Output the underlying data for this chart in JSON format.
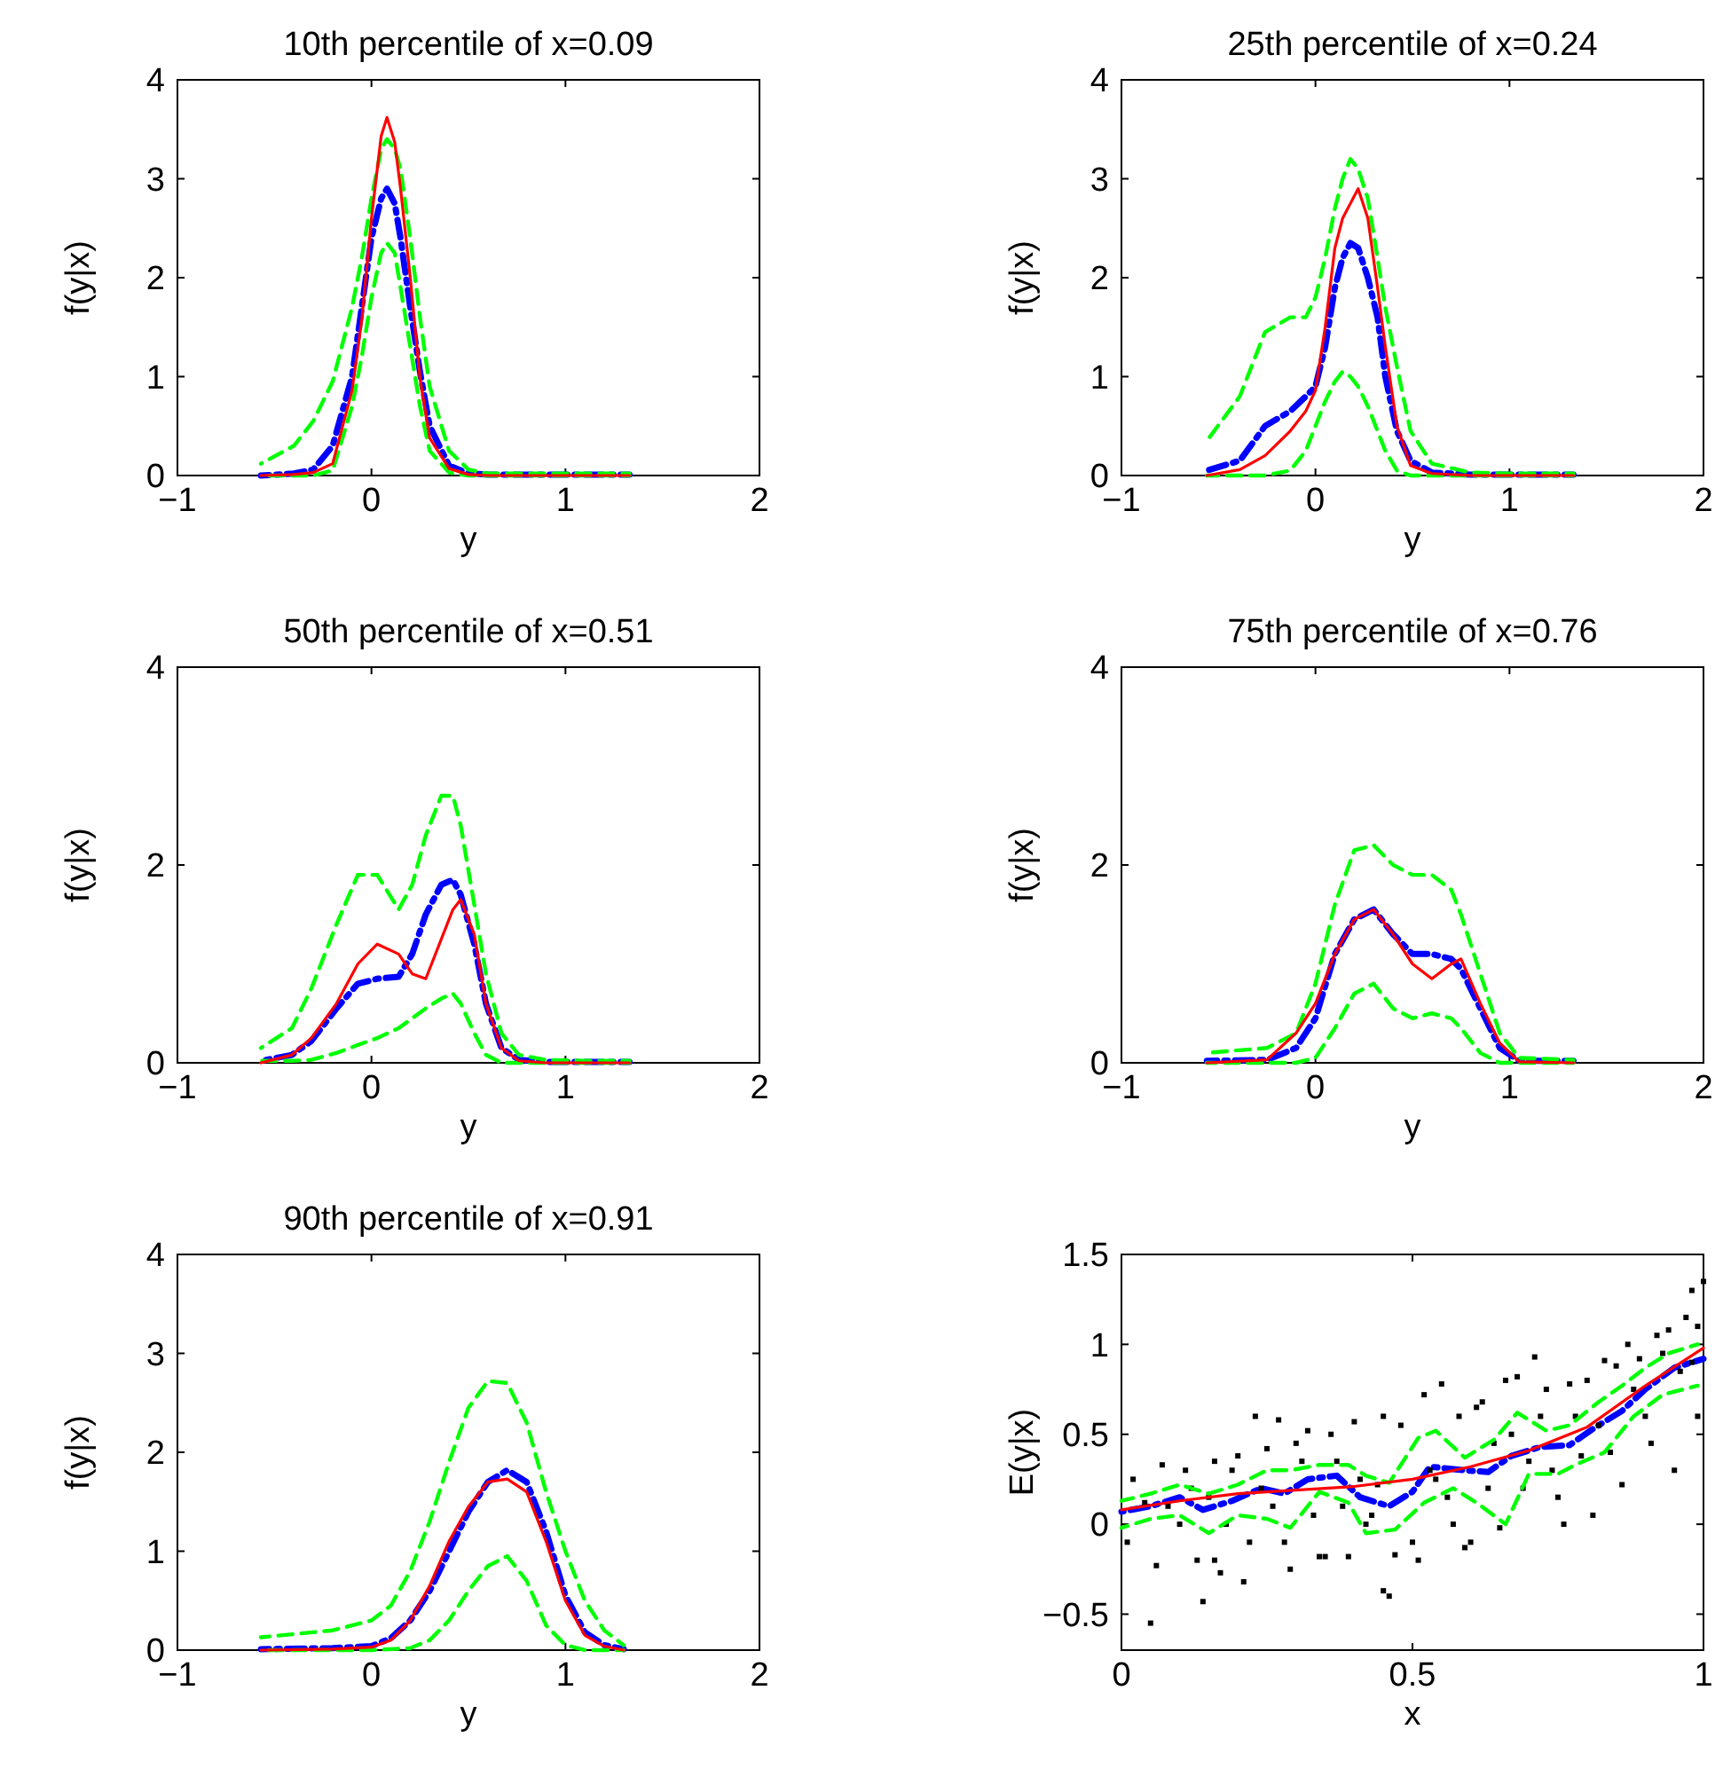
{
  "chart_data": [
    {
      "type": "line",
      "title": "10th percentile of x=0.09",
      "xlabel": "y",
      "ylabel": "f(y|x)",
      "xlim": [
        -1,
        2
      ],
      "xticks": [
        -1,
        0,
        1,
        2
      ],
      "ylim": [
        0,
        4
      ],
      "yticks": [
        0,
        1,
        2,
        3,
        4
      ],
      "x": [
        -0.57,
        -0.4,
        -0.3,
        -0.2,
        -0.1,
        -0.05,
        0,
        0.05,
        0.08,
        0.12,
        0.15,
        0.2,
        0.25,
        0.3,
        0.4,
        0.5,
        0.6,
        0.8,
        1.0,
        1.33
      ],
      "series": [
        {
          "color": "#00ff00",
          "line_style": "dashed",
          "values": [
            0.12,
            0.3,
            0.55,
            0.95,
            1.7,
            2.2,
            2.8,
            3.3,
            3.4,
            3.3,
            3.1,
            2.4,
            1.6,
            0.9,
            0.25,
            0.06,
            0.02,
            0.02,
            0.02,
            0.02
          ]
        },
        {
          "color": "#00ff00",
          "line_style": "dashed",
          "values": [
            0,
            0,
            0,
            0.05,
            0.7,
            1.2,
            1.8,
            2.25,
            2.35,
            2.25,
            1.9,
            1.3,
            0.7,
            0.25,
            0.03,
            0,
            0,
            0,
            0,
            0
          ]
        },
        {
          "color": "#0000ff",
          "line_style": "dashdot",
          "values": [
            0,
            0.02,
            0.06,
            0.3,
            1.0,
            1.7,
            2.4,
            2.8,
            2.9,
            2.75,
            2.4,
            1.7,
            1.05,
            0.5,
            0.1,
            0.02,
            0.01,
            0.01,
            0.01,
            0.01
          ]
        },
        {
          "color": "#ff0000",
          "line_style": "solid",
          "values": [
            0,
            0.01,
            0.03,
            0.12,
            0.86,
            1.57,
            2.6,
            3.43,
            3.62,
            3.37,
            2.9,
            2.0,
            0.98,
            0.38,
            0.07,
            0.01,
            0,
            0,
            0,
            0
          ]
        }
      ]
    },
    {
      "type": "line",
      "title": "25th percentile of x=0.24",
      "xlabel": "y",
      "ylabel": "f(y|x)",
      "xlim": [
        -1,
        2
      ],
      "xticks": [
        -1,
        0,
        1,
        2
      ],
      "ylim": [
        0,
        4
      ],
      "yticks": [
        0,
        1,
        2,
        3,
        4
      ],
      "x": [
        -0.56,
        -0.39,
        -0.26,
        -0.13,
        -0.05,
        0,
        0.05,
        0.1,
        0.14,
        0.18,
        0.22,
        0.27,
        0.32,
        0.36,
        0.42,
        0.49,
        0.6,
        0.8,
        1.0,
        1.33
      ],
      "series": [
        {
          "color": "#00ff00",
          "line_style": "dashed",
          "values": [
            0.35,
            0.8,
            1.45,
            1.6,
            1.6,
            1.8,
            2.2,
            2.7,
            3.0,
            3.2,
            3.1,
            2.8,
            2.2,
            1.7,
            1.1,
            0.45,
            0.12,
            0.03,
            0.02,
            0.02
          ]
        },
        {
          "color": "#00ff00",
          "line_style": "dashed",
          "values": [
            0,
            0,
            0,
            0.05,
            0.25,
            0.5,
            0.75,
            0.95,
            1.05,
            1.0,
            0.9,
            0.7,
            0.45,
            0.25,
            0.05,
            0,
            0,
            0,
            0,
            0
          ]
        },
        {
          "color": "#0000ff",
          "line_style": "dashdot",
          "values": [
            0.05,
            0.15,
            0.5,
            0.65,
            0.8,
            0.9,
            1.3,
            1.9,
            2.2,
            2.35,
            2.3,
            2.0,
            1.6,
            1.0,
            0.45,
            0.15,
            0.03,
            0.01,
            0.01,
            0.01
          ]
        },
        {
          "color": "#ff0000",
          "line_style": "solid",
          "values": [
            0,
            0.06,
            0.2,
            0.45,
            0.65,
            0.86,
            1.5,
            2.3,
            2.6,
            2.75,
            2.9,
            2.6,
            1.9,
            1.3,
            0.5,
            0.1,
            0.02,
            0,
            0,
            0
          ]
        }
      ]
    },
    {
      "type": "line",
      "title": "50th percentile of x=0.51",
      "xlabel": "y",
      "ylabel": "f(y|x)",
      "xlim": [
        -1,
        2
      ],
      "xticks": [
        -1,
        0,
        1,
        2
      ],
      "ylim": [
        0,
        4
      ],
      "yticks": [
        0,
        2,
        4
      ],
      "x": [
        -0.57,
        -0.41,
        -0.31,
        -0.18,
        -0.07,
        0.03,
        0.14,
        0.21,
        0.28,
        0.36,
        0.42,
        0.46,
        0.53,
        0.59,
        0.67,
        0.76,
        0.9,
        1.1,
        1.33
      ],
      "series": [
        {
          "color": "#00ff00",
          "line_style": "dashed",
          "values": [
            0.15,
            0.35,
            0.75,
            1.4,
            1.9,
            1.9,
            1.55,
            1.8,
            2.3,
            2.7,
            2.7,
            2.4,
            1.6,
            0.9,
            0.3,
            0.08,
            0.03,
            0.02,
            0.02
          ]
        },
        {
          "color": "#00ff00",
          "line_style": "dashed",
          "values": [
            0.02,
            0.02,
            0.03,
            0.1,
            0.18,
            0.25,
            0.35,
            0.45,
            0.55,
            0.65,
            0.7,
            0.6,
            0.3,
            0.08,
            0,
            0,
            0,
            0,
            0
          ]
        },
        {
          "color": "#0000ff",
          "line_style": "dashdot",
          "values": [
            0.02,
            0.08,
            0.22,
            0.55,
            0.8,
            0.85,
            0.87,
            1.1,
            1.5,
            1.8,
            1.85,
            1.7,
            1.2,
            0.6,
            0.15,
            0.03,
            0.01,
            0.01,
            0.01
          ]
        },
        {
          "color": "#ff0000",
          "line_style": "solid",
          "values": [
            0,
            0.08,
            0.25,
            0.6,
            1.0,
            1.2,
            1.1,
            0.9,
            0.85,
            1.25,
            1.55,
            1.65,
            1.3,
            0.6,
            0.15,
            0.02,
            0,
            0,
            0
          ]
        }
      ]
    },
    {
      "type": "line",
      "title": "75th percentile of x=0.76",
      "xlabel": "y",
      "ylabel": "f(y|x)",
      "xlim": [
        -1,
        2
      ],
      "xticks": [
        -1,
        0,
        1,
        2
      ],
      "ylim": [
        0,
        4
      ],
      "yticks": [
        0,
        2,
        4
      ],
      "x": [
        -0.56,
        -0.25,
        -0.1,
        0,
        0.1,
        0.2,
        0.3,
        0.4,
        0.5,
        0.6,
        0.7,
        0.75,
        0.85,
        0.95,
        1.05,
        1.33
      ],
      "series": [
        {
          "color": "#00ff00",
          "line_style": "dashed",
          "values": [
            0.1,
            0.15,
            0.3,
            0.8,
            1.6,
            2.15,
            2.2,
            2.0,
            1.9,
            1.9,
            1.75,
            1.5,
            0.9,
            0.3,
            0.05,
            0.03
          ]
        },
        {
          "color": "#00ff00",
          "line_style": "dashed",
          "values": [
            0,
            0,
            0,
            0.05,
            0.35,
            0.7,
            0.8,
            0.55,
            0.45,
            0.5,
            0.45,
            0.35,
            0.1,
            0,
            0,
            0
          ]
        },
        {
          "color": "#0000ff",
          "line_style": "dashdot",
          "values": [
            0.02,
            0.03,
            0.15,
            0.45,
            1.1,
            1.45,
            1.55,
            1.3,
            1.1,
            1.1,
            1.05,
            0.95,
            0.55,
            0.15,
            0.02,
            0.02
          ]
        },
        {
          "color": "#ff0000",
          "line_style": "solid",
          "values": [
            0,
            0.03,
            0.3,
            0.6,
            1.1,
            1.45,
            1.55,
            1.3,
            1.0,
            0.85,
            1.0,
            1.05,
            0.6,
            0.2,
            0.01,
            0
          ]
        }
      ]
    },
    {
      "type": "line",
      "title": "90th percentile of x=0.91",
      "xlabel": "y",
      "ylabel": "f(y|x)",
      "xlim": [
        -1,
        2
      ],
      "xticks": [
        -1,
        0,
        1,
        2
      ],
      "ylim": [
        0,
        4
      ],
      "yticks": [
        0,
        1,
        2,
        3,
        4
      ],
      "x": [
        -0.57,
        -0.2,
        0,
        0.1,
        0.2,
        0.3,
        0.4,
        0.5,
        0.6,
        0.7,
        0.8,
        0.9,
        1.0,
        1.1,
        1.2,
        1.3
      ],
      "series": [
        {
          "color": "#00ff00",
          "line_style": "dashed",
          "values": [
            0.13,
            0.2,
            0.3,
            0.45,
            0.8,
            1.3,
            1.9,
            2.45,
            2.72,
            2.7,
            2.3,
            1.6,
            1.0,
            0.5,
            0.2,
            0.05
          ]
        },
        {
          "color": "#00ff00",
          "line_style": "dashed",
          "values": [
            0,
            0,
            0,
            0.01,
            0.02,
            0.1,
            0.3,
            0.6,
            0.85,
            0.95,
            0.7,
            0.25,
            0.05,
            0,
            0,
            0
          ]
        },
        {
          "color": "#0000ff",
          "line_style": "dashdot",
          "values": [
            0.01,
            0.02,
            0.04,
            0.12,
            0.3,
            0.6,
            1.0,
            1.4,
            1.7,
            1.82,
            1.7,
            1.2,
            0.55,
            0.18,
            0.05,
            0.01
          ]
        },
        {
          "color": "#ff0000",
          "line_style": "solid",
          "values": [
            0,
            0.01,
            0.03,
            0.1,
            0.3,
            0.65,
            1.1,
            1.45,
            1.7,
            1.73,
            1.6,
            1.1,
            0.5,
            0.15,
            0.04,
            0
          ]
        }
      ]
    },
    {
      "type": "line",
      "xlabel": "x",
      "ylabel": "E(y|x)",
      "xlim": [
        0,
        1
      ],
      "xticks": [
        0,
        0.5,
        1
      ],
      "ylim": [
        -0.7,
        1.5
      ],
      "yticks": [
        -0.5,
        0,
        0.5,
        1,
        1.5
      ],
      "series": [
        {
          "type": "scatter",
          "color": "#000000",
          "marker": "square",
          "x": [
            0.01,
            0.04,
            0.06,
            0.07,
            0.05,
            0.1,
            0.11,
            0.12,
            0.13,
            0.14,
            0.16,
            0.16,
            0.17,
            0.18,
            0.19,
            0.2,
            0.21,
            0.22,
            0.23,
            0.24,
            0.25,
            0.27,
            0.28,
            0.29,
            0.3,
            0.31,
            0.32,
            0.33,
            0.34,
            0.35,
            0.36,
            0.37,
            0.39,
            0.4,
            0.41,
            0.42,
            0.43,
            0.45,
            0.45,
            0.46,
            0.47,
            0.48,
            0.5,
            0.51,
            0.52,
            0.53,
            0.55,
            0.56,
            0.57,
            0.58,
            0.59,
            0.6,
            0.61,
            0.62,
            0.63,
            0.65,
            0.66,
            0.67,
            0.68,
            0.69,
            0.7,
            0.71,
            0.72,
            0.73,
            0.74,
            0.75,
            0.76,
            0.77,
            0.78,
            0.79,
            0.8,
            0.81,
            0.82,
            0.83,
            0.84,
            0.85,
            0.86,
            0.87,
            0.88,
            0.89,
            0.9,
            0.91,
            0.92,
            0.93,
            0.94,
            0.95,
            0.96,
            0.97,
            0.98,
            0.99,
            1.0,
            0.99,
            0.98,
            0.02,
            0.08,
            0.15,
            0.26,
            0.38,
            0.44,
            0.54,
            0.64
          ],
          "values": [
            -0.1,
            0.12,
            -0.23,
            0.33,
            -0.55,
            0.0,
            0.3,
            0.2,
            -0.2,
            -0.43,
            -0.2,
            0.35,
            -0.27,
            0.0,
            0.3,
            0.38,
            -0.32,
            -0.1,
            0.6,
            0.2,
            0.42,
            0.58,
            -0.1,
            -0.25,
            0.45,
            0.35,
            0.52,
            0.05,
            -0.18,
            -0.18,
            0.5,
            0.35,
            -0.18,
            0.57,
            0.25,
            0.0,
            0.05,
            0.6,
            -0.37,
            -0.4,
            -0.17,
            0.55,
            -0.1,
            -0.2,
            0.72,
            0.3,
            0.78,
            0.15,
            0.0,
            0.6,
            -0.13,
            -0.1,
            0.65,
            0.68,
            0.2,
            -0.02,
            0.8,
            0.5,
            0.82,
            0.2,
            0.35,
            0.93,
            0.6,
            0.75,
            0.3,
            0.15,
            0.0,
            0.78,
            0.6,
            0.38,
            0.8,
            0.05,
            0.55,
            0.91,
            0.4,
            0.88,
            0.22,
            1.0,
            0.75,
            0.92,
            0.6,
            0.45,
            1.05,
            0.95,
            1.08,
            0.3,
            0.85,
            1.15,
            1.3,
            0.6,
            1.35,
            1.1,
            0.9,
            0.25,
            0.1,
            0.15,
            0.1,
            0.1,
            0.22,
            0.25,
            0.45
          ]
        },
        {
          "color": "#00ff00",
          "line_style": "dashed",
          "x": [
            0,
            0.05,
            0.1,
            0.15,
            0.2,
            0.25,
            0.29,
            0.34,
            0.39,
            0.42,
            0.46,
            0.51,
            0.54,
            0.59,
            0.64,
            0.68,
            0.73,
            0.77,
            0.82,
            0.86,
            0.9,
            0.94,
            0.99
          ],
          "values": [
            0.13,
            0.17,
            0.22,
            0.17,
            0.22,
            0.3,
            0.3,
            0.33,
            0.33,
            0.27,
            0.23,
            0.48,
            0.52,
            0.37,
            0.47,
            0.62,
            0.52,
            0.55,
            0.68,
            0.77,
            0.87,
            0.95,
            1.0
          ]
        },
        {
          "color": "#00ff00",
          "line_style": "dashed",
          "x": [
            0,
            0.05,
            0.1,
            0.15,
            0.2,
            0.25,
            0.29,
            0.34,
            0.39,
            0.42,
            0.47,
            0.52,
            0.57,
            0.61,
            0.66,
            0.7,
            0.75,
            0.78,
            0.83,
            0.88,
            0.93,
            0.99
          ],
          "values": [
            -0.02,
            0.03,
            0.05,
            -0.05,
            0.05,
            0.03,
            -0.02,
            0.18,
            0.12,
            -0.05,
            -0.03,
            0.12,
            0.2,
            0.12,
            0,
            0.28,
            0.28,
            0.33,
            0.4,
            0.6,
            0.72,
            0.77
          ]
        },
        {
          "color": "#0000ff",
          "line_style": "dashdot",
          "x": [
            0,
            0.05,
            0.1,
            0.14,
            0.19,
            0.24,
            0.28,
            0.32,
            0.37,
            0.41,
            0.46,
            0.5,
            0.53,
            0.59,
            0.63,
            0.67,
            0.72,
            0.77,
            0.81,
            0.86,
            0.9,
            0.95,
            1.0
          ],
          "values": [
            0.07,
            0.1,
            0.15,
            0.08,
            0.13,
            0.2,
            0.17,
            0.25,
            0.27,
            0.15,
            0.1,
            0.18,
            0.32,
            0.3,
            0.29,
            0.38,
            0.43,
            0.44,
            0.53,
            0.63,
            0.75,
            0.87,
            0.92
          ]
        },
        {
          "color": "#ff0000",
          "line_style": "solid",
          "x": [
            0,
            0.1,
            0.2,
            0.3,
            0.4,
            0.5,
            0.6,
            0.7,
            0.8,
            0.9,
            1.0
          ],
          "values": [
            0.08,
            0.13,
            0.17,
            0.19,
            0.21,
            0.25,
            0.32,
            0.41,
            0.54,
            0.77,
            0.98
          ]
        }
      ]
    }
  ]
}
